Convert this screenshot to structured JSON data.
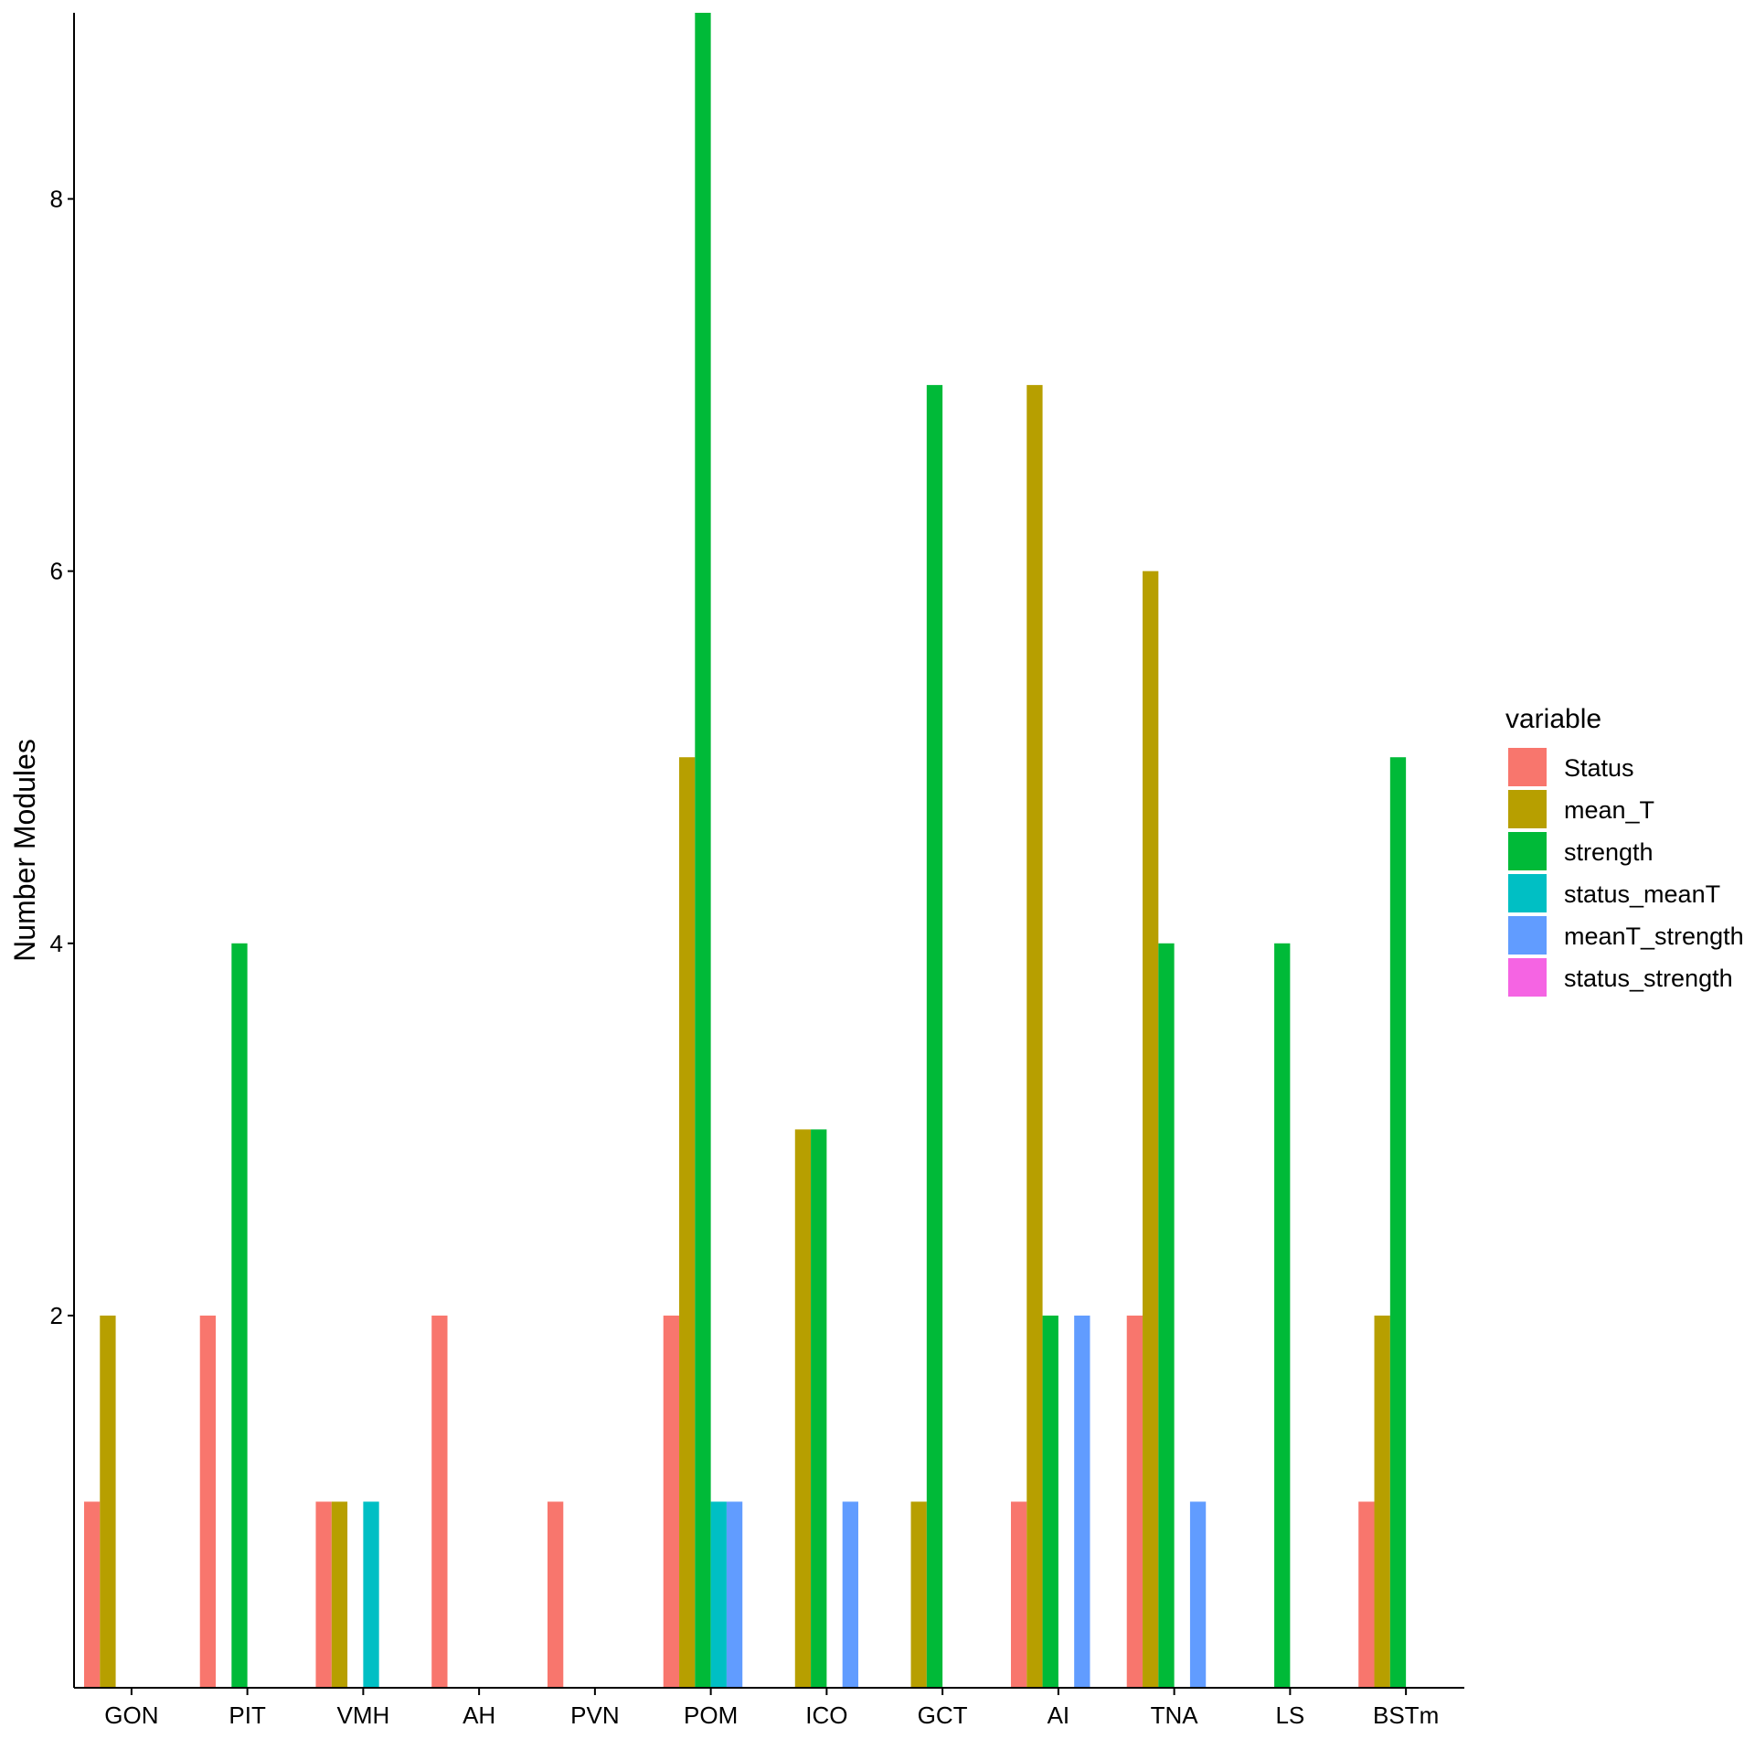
{
  "chart_data": {
    "type": "bar",
    "title": "",
    "xlabel": "",
    "ylabel": "Number Modules",
    "ylim": [
      0,
      9
    ],
    "yticks": [
      2,
      4,
      6,
      8
    ],
    "grid": false,
    "legend_placement": "right",
    "legend_title": "variable",
    "categories": [
      "GON",
      "PIT",
      "VMH",
      "AH",
      "PVN",
      "POM",
      "ICO",
      "GCT",
      "AI",
      "TNA",
      "LS",
      "BSTm"
    ],
    "series": [
      {
        "name": "Status",
        "color": "#F8766D",
        "values": [
          1,
          2,
          1,
          2,
          1,
          2,
          0,
          0,
          1,
          2,
          0,
          1
        ]
      },
      {
        "name": "mean_T",
        "color": "#B79F00",
        "values": [
          2,
          0,
          1,
          0,
          0,
          5,
          3,
          1,
          7,
          6,
          0,
          2
        ]
      },
      {
        "name": "strength",
        "color": "#00BA38",
        "values": [
          0,
          4,
          0,
          0,
          0,
          9,
          3,
          7,
          2,
          4,
          4,
          5
        ]
      },
      {
        "name": "status_meanT",
        "color": "#00BFC4",
        "values": [
          0,
          0,
          1,
          0,
          0,
          1,
          0,
          0,
          0,
          0,
          0,
          0
        ]
      },
      {
        "name": "meanT_strength",
        "color": "#619CFF",
        "values": [
          0,
          0,
          0,
          0,
          0,
          1,
          1,
          0,
          2,
          1,
          0,
          0
        ]
      },
      {
        "name": "status_strength",
        "color": "#F564E3",
        "values": [
          0,
          0,
          0,
          0,
          0,
          0,
          0,
          0,
          0,
          0,
          0,
          0
        ]
      }
    ]
  }
}
